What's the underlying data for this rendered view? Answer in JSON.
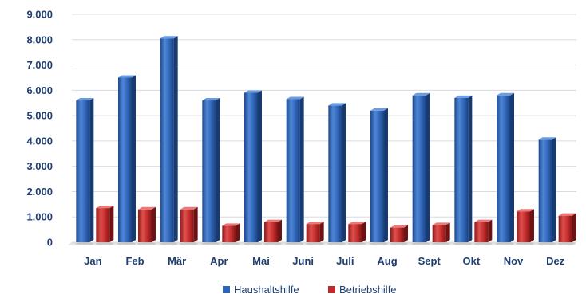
{
  "chart_data": {
    "type": "bar",
    "title": "",
    "xlabel": "",
    "ylabel": "",
    "categories": [
      "Jan",
      "Feb",
      "Mär",
      "Apr",
      "Mai",
      "Juni",
      "Juli",
      "Aug",
      "Sept",
      "Okt",
      "Nov",
      "Dez"
    ],
    "series": [
      {
        "name": "Haushaltshilfe",
        "color": "#2e64b5",
        "values": [
          5600,
          6500,
          8050,
          5600,
          5900,
          5650,
          5400,
          5200,
          5800,
          5700,
          5800,
          4050
        ]
      },
      {
        "name": "Betriebshilfe",
        "color": "#c0292a",
        "values": [
          1350,
          1300,
          1300,
          650,
          800,
          720,
          720,
          580,
          680,
          800,
          1220,
          1050
        ]
      }
    ],
    "ylim": [
      0,
      9000
    ],
    "yticks": [
      0,
      1000,
      2000,
      3000,
      4000,
      5000,
      6000,
      7000,
      8000,
      9000
    ],
    "ytick_labels": [
      "0",
      "1.000",
      "2.000",
      "3.000",
      "4.000",
      "5.000",
      "6.000",
      "7.000",
      "8.000",
      "9.000"
    ],
    "grid": true,
    "legend_position": "bottom"
  }
}
